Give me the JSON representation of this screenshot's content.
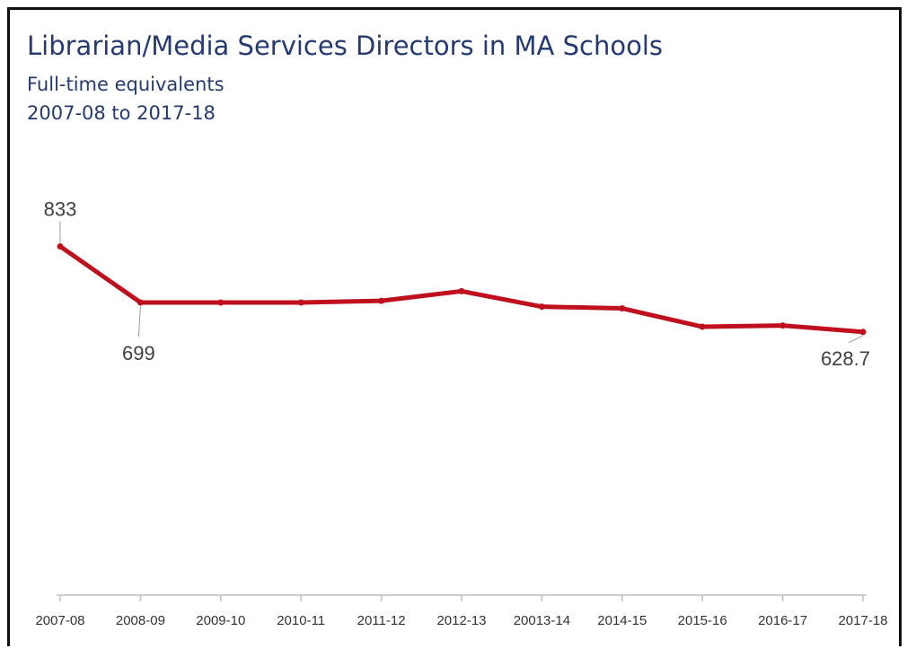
{
  "chart_data": {
    "type": "line",
    "title": "Librarian/Media Services Directors in MA Schools",
    "subtitle": "Full-time equivalents",
    "subtitle2": "2007-08 to 2017-18",
    "xlabel": "",
    "ylabel": "",
    "categories": [
      "2007-08",
      "2008-09",
      "2009-10",
      "2010-11",
      "2011-12",
      "2012-13",
      "20013-14",
      "2014-15",
      "2015-16",
      "2016-17",
      "2017-18"
    ],
    "series": [
      {
        "values": [
          833,
          699,
          699,
          699,
          703,
          726,
          689,
          685,
          641,
          644,
          628.7
        ]
      }
    ],
    "data_labels": [
      {
        "index": 0,
        "text": "833"
      },
      {
        "index": 1,
        "text": "699"
      },
      {
        "index": 10,
        "text": "628.7"
      }
    ],
    "ylim": [
      0,
      1450
    ],
    "grid": false,
    "legend": "none",
    "line_color": "#c0101e"
  }
}
